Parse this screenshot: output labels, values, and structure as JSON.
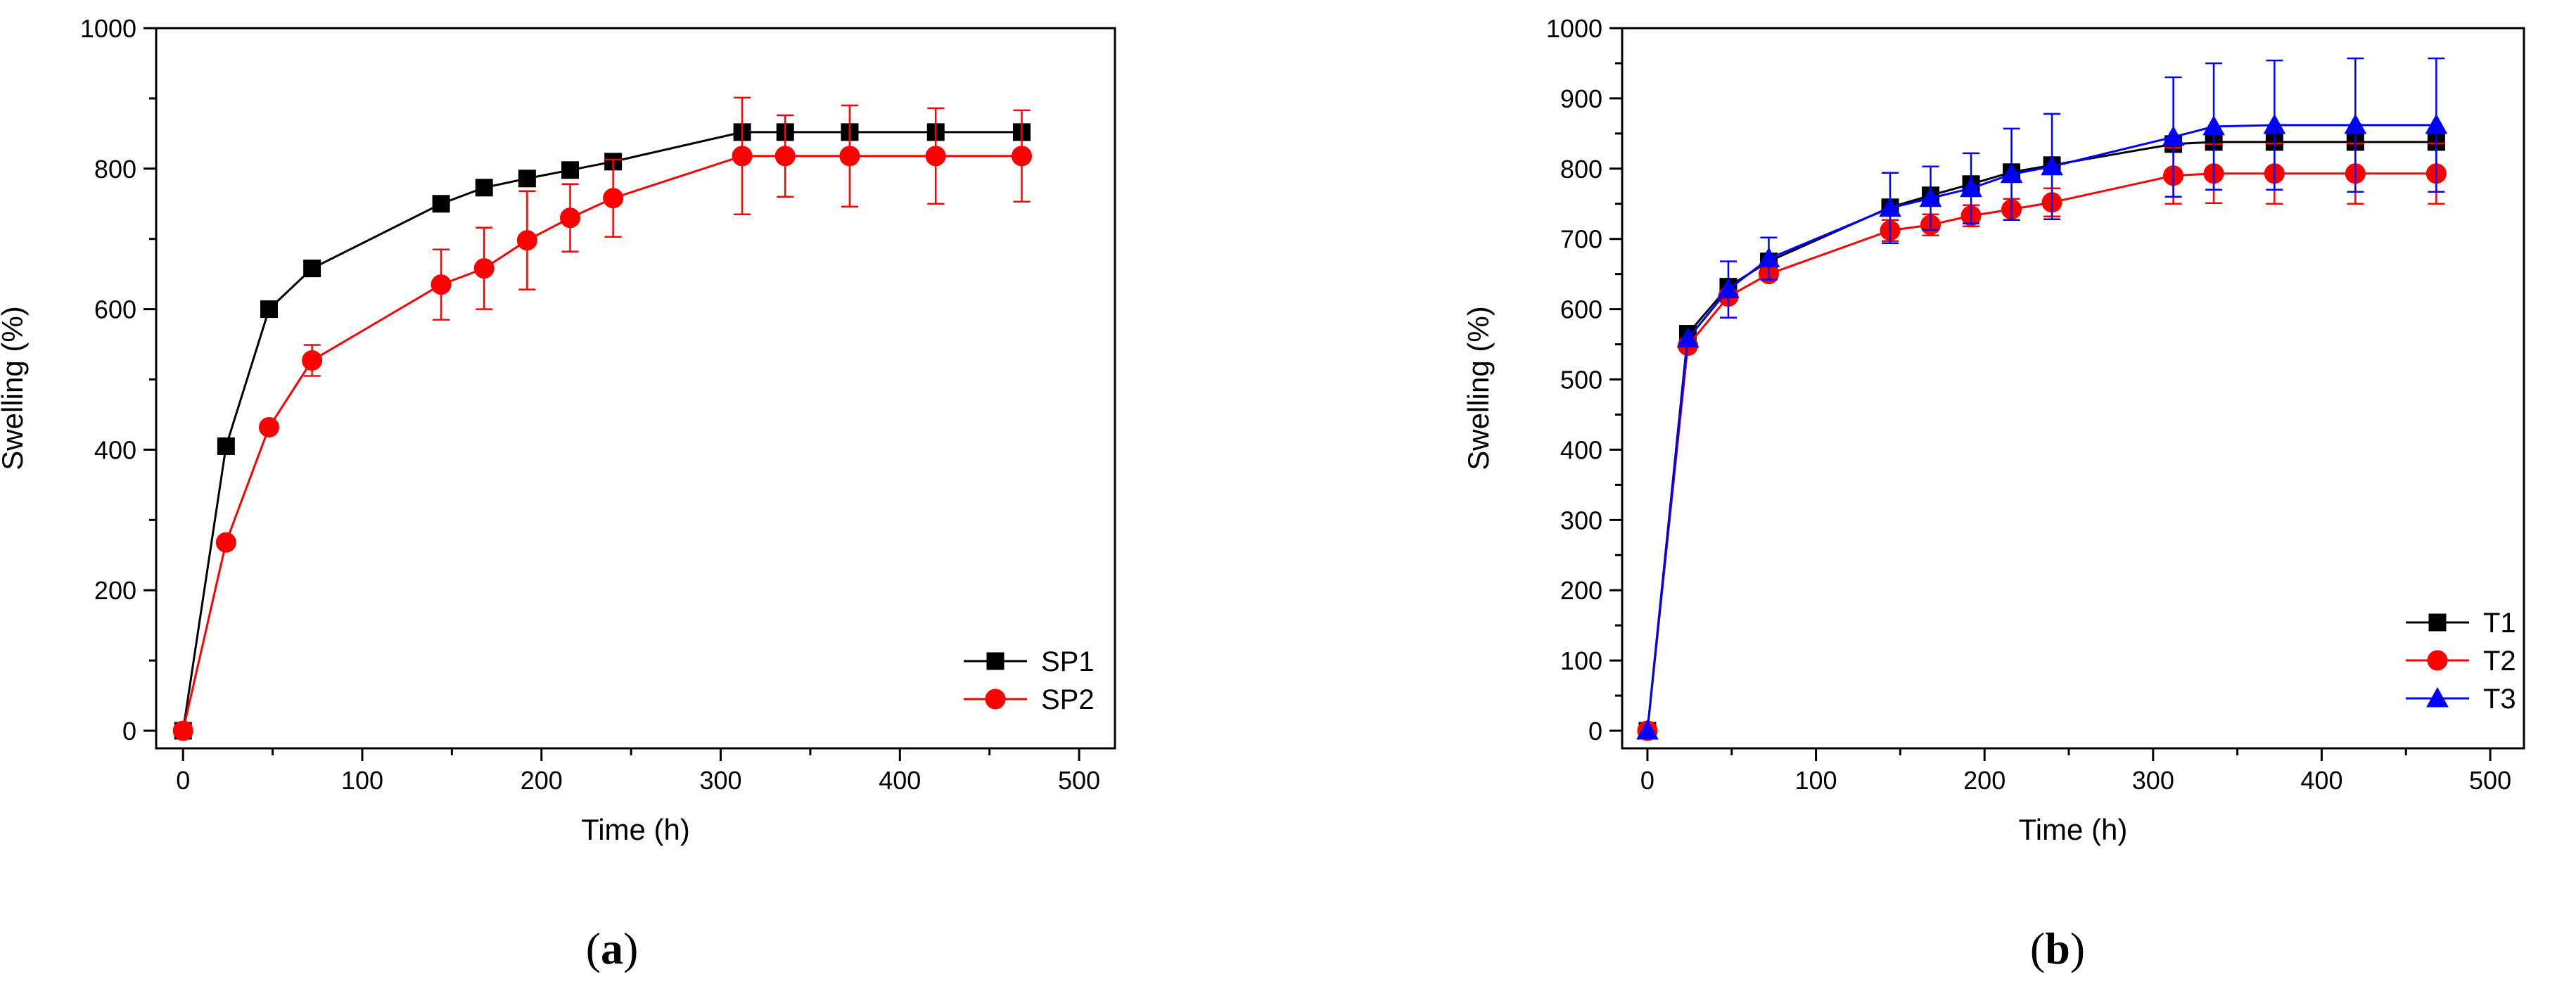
{
  "chart_data": [
    {
      "type": "line",
      "panel_label": "a",
      "xlabel": "Time (h)",
      "ylabel": "Swelling (%)",
      "xlim": [
        -15,
        520
      ],
      "ylim": [
        -25,
        1000
      ],
      "xticks": [
        0,
        100,
        200,
        300,
        400,
        500
      ],
      "xticks_minor": [
        50,
        150,
        250,
        350,
        450
      ],
      "yticks": [
        0,
        200,
        400,
        600,
        800,
        1000
      ],
      "yticks_minor": [
        100,
        300,
        500,
        700,
        900
      ],
      "grid": false,
      "legend_position": "bottom-right",
      "series": [
        {
          "name": "SP1",
          "color": "#000000",
          "marker": "square",
          "x": [
            0,
            24,
            48,
            72,
            144,
            168,
            192,
            216,
            240,
            312,
            336,
            372,
            420,
            468
          ],
          "y": [
            0,
            405,
            600,
            658,
            750,
            773,
            786,
            798,
            810,
            852,
            852,
            852,
            852,
            852
          ],
          "err": [
            0,
            0,
            0,
            0,
            10,
            0,
            0,
            0,
            0,
            0,
            0,
            0,
            0,
            0
          ]
        },
        {
          "name": "SP2",
          "color": "#ff0000",
          "marker": "circle",
          "x": [
            0,
            24,
            48,
            72,
            144,
            168,
            192,
            216,
            240,
            312,
            336,
            372,
            420,
            468
          ],
          "y": [
            0,
            268,
            432,
            527,
            635,
            658,
            698,
            730,
            758,
            818,
            818,
            818,
            818,
            818
          ],
          "err": [
            0,
            0,
            0,
            22,
            50,
            58,
            70,
            48,
            55,
            83,
            58,
            72,
            68,
            65
          ]
        }
      ]
    },
    {
      "type": "line",
      "panel_label": "b",
      "xlabel": "Time (h)",
      "ylabel": "Swelling (%)",
      "xlim": [
        -15,
        520
      ],
      "ylim": [
        -25,
        1000
      ],
      "xticks": [
        0,
        100,
        200,
        300,
        400,
        500
      ],
      "xticks_minor": [
        50,
        150,
        250,
        350,
        450
      ],
      "yticks": [
        0,
        100,
        200,
        300,
        400,
        500,
        600,
        700,
        800,
        900,
        1000
      ],
      "yticks_minor": [
        50,
        150,
        250,
        350,
        450,
        550,
        650,
        750,
        850,
        950
      ],
      "grid": false,
      "legend_position": "bottom-right",
      "series": [
        {
          "name": "T1",
          "color": "#000000",
          "marker": "square",
          "x": [
            0,
            24,
            48,
            72,
            144,
            168,
            192,
            216,
            240,
            312,
            336,
            372,
            420,
            468
          ],
          "y": [
            0,
            565,
            632,
            668,
            745,
            762,
            778,
            795,
            805,
            835,
            838,
            838,
            838,
            838
          ],
          "err": [
            0,
            0,
            0,
            0,
            0,
            0,
            0,
            0,
            0,
            0,
            0,
            0,
            0,
            0
          ]
        },
        {
          "name": "T2",
          "color": "#ff0000",
          "marker": "circle",
          "x": [
            0,
            24,
            48,
            72,
            144,
            168,
            192,
            216,
            240,
            312,
            336,
            372,
            420,
            468
          ],
          "y": [
            0,
            548,
            618,
            650,
            712,
            720,
            733,
            742,
            752,
            790,
            793,
            793,
            793,
            793
          ],
          "err": [
            0,
            0,
            0,
            0,
            15,
            15,
            15,
            15,
            20,
            40,
            42,
            43,
            43,
            43
          ]
        },
        {
          "name": "T3",
          "color": "#0000ff",
          "marker": "triangle",
          "x": [
            0,
            24,
            48,
            72,
            144,
            168,
            192,
            216,
            240,
            312,
            336,
            372,
            420,
            468
          ],
          "y": [
            0,
            558,
            628,
            672,
            744,
            758,
            772,
            792,
            803,
            845,
            860,
            862,
            862,
            862
          ],
          "err": [
            0,
            0,
            40,
            30,
            50,
            45,
            50,
            65,
            75,
            85,
            90,
            92,
            95,
            95
          ]
        }
      ]
    }
  ]
}
